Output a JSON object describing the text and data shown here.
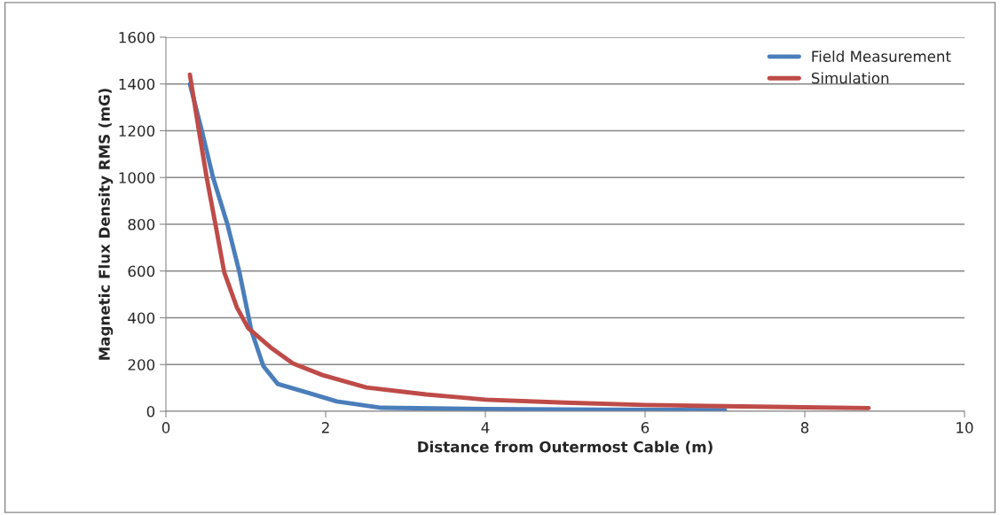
{
  "chart_data": {
    "type": "line",
    "xlabel": "Distance from Outermost Cable (m)",
    "ylabel": "Magnetic Flux Density RMS (mG)",
    "xlim": [
      0,
      10
    ],
    "xticks": [
      0,
      2,
      4,
      6,
      8,
      10
    ],
    "ylim": [
      0,
      1600
    ],
    "yticks": [
      0,
      200,
      400,
      600,
      800,
      1000,
      1200,
      1400,
      1600
    ],
    "grid": "y",
    "legend": "top right",
    "series": [
      {
        "name": "Field Measurement",
        "color": "#4a7ebb",
        "x": [
          0.3,
          0.45,
          0.59,
          0.77,
          0.92,
          1.07,
          1.22,
          1.4,
          1.77,
          2.14,
          2.7,
          4,
          5.5,
          7
        ],
        "values": [
          1400,
          1200,
          1000,
          800,
          595,
          345,
          193,
          117,
          80,
          42,
          15,
          10,
          7,
          5
        ]
      },
      {
        "name": "Simulation",
        "color": "#be4b48",
        "x": [
          0.3,
          0.4,
          0.51,
          0.62,
          0.73,
          0.89,
          1.03,
          1.33,
          1.59,
          1.96,
          2.51,
          3.26,
          4,
          5,
          6,
          7,
          8,
          8.8
        ],
        "values": [
          1440,
          1228,
          1000,
          800,
          595,
          443,
          356,
          268,
          205,
          155,
          102,
          72,
          50,
          37,
          27,
          22,
          17,
          14
        ]
      }
    ]
  }
}
